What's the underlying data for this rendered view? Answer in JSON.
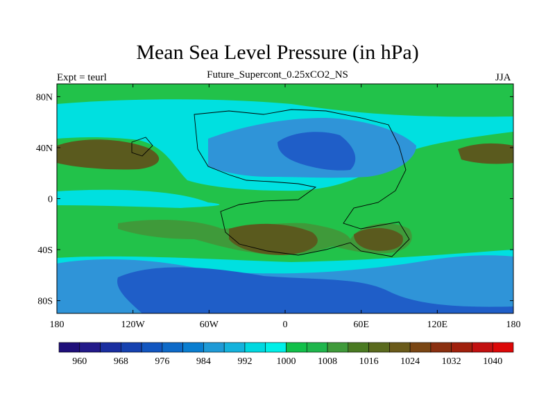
{
  "title": "Mean Sea Level Pressure (in hPa)",
  "subtitle": "Future_Supercont_0.25xCO2_NS",
  "left_label": "Expt = teurl",
  "right_label": "JJA",
  "chart_data": {
    "type": "heatmap",
    "title": "Mean Sea Level Pressure (in hPa)",
    "subtitle": "Future_Supercont_0.25xCO2_NS",
    "xlabel": "",
    "ylabel": "",
    "x_ticks": [
      "180",
      "120W",
      "60W",
      "0",
      "60E",
      "120E",
      "180"
    ],
    "y_ticks": [
      "80N",
      "40N",
      "0",
      "40S",
      "80S"
    ],
    "xlim": [
      -180,
      180
    ],
    "ylim": [
      -90,
      90
    ],
    "colorbar": {
      "levels": [
        960,
        964,
        968,
        972,
        976,
        980,
        984,
        988,
        992,
        996,
        1000,
        1004,
        1008,
        1012,
        1016,
        1020,
        1024,
        1028,
        1032,
        1036,
        1040
      ],
      "labels": [
        "960",
        "968",
        "976",
        "984",
        "992",
        "1000",
        "1008",
        "1016",
        "1024",
        "1032",
        "1040"
      ],
      "colors": [
        "#1f0f7a",
        "#231a8a",
        "#1a2ea0",
        "#1642b0",
        "#1256c0",
        "#0e6ac8",
        "#0a7ed0",
        "#1f9ad6",
        "#14b2dc",
        "#00d8e0",
        "#00f0e8",
        "#12c04a",
        "#1fb64c",
        "#3f9a3a",
        "#4a7a22",
        "#5a6a1e",
        "#6a5a1a",
        "#7a4614",
        "#8a3010",
        "#a0200c",
        "#c21010",
        "#dc0808"
      ]
    },
    "fill_colors": {
      "deep_low": "#1f5ec8",
      "low": "#2f94d8",
      "mid_low": "#00e0e0",
      "mid": "#22c24a",
      "high": "#3f9a3a",
      "very_high": "#5a5a1e"
    },
    "grid": false
  }
}
